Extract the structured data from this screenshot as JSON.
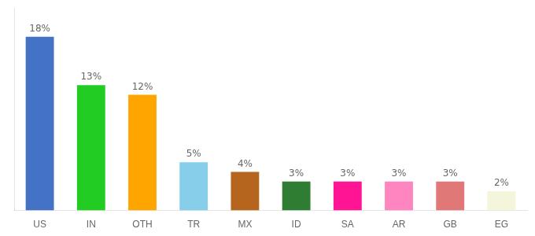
{
  "chart_data": {
    "type": "bar",
    "categories": [
      "US",
      "IN",
      "OTH",
      "TR",
      "MX",
      "ID",
      "SA",
      "AR",
      "GB",
      "EG"
    ],
    "values": [
      18,
      13,
      12,
      5,
      4,
      3,
      3,
      3,
      3,
      2
    ],
    "value_labels": [
      "18%",
      "13%",
      "12%",
      "5%",
      "4%",
      "3%",
      "3%",
      "3%",
      "3%",
      "2%"
    ],
    "colors": [
      "#4472C4",
      "#22CC22",
      "#FFA500",
      "#87CEEB",
      "#B5651D",
      "#2E7D32",
      "#FF1493",
      "#FF85C0",
      "#E07878",
      "#F5F5DC"
    ],
    "ylim": [
      0,
      21
    ],
    "grid": false,
    "data_labels": true,
    "tick_labels": "x"
  }
}
